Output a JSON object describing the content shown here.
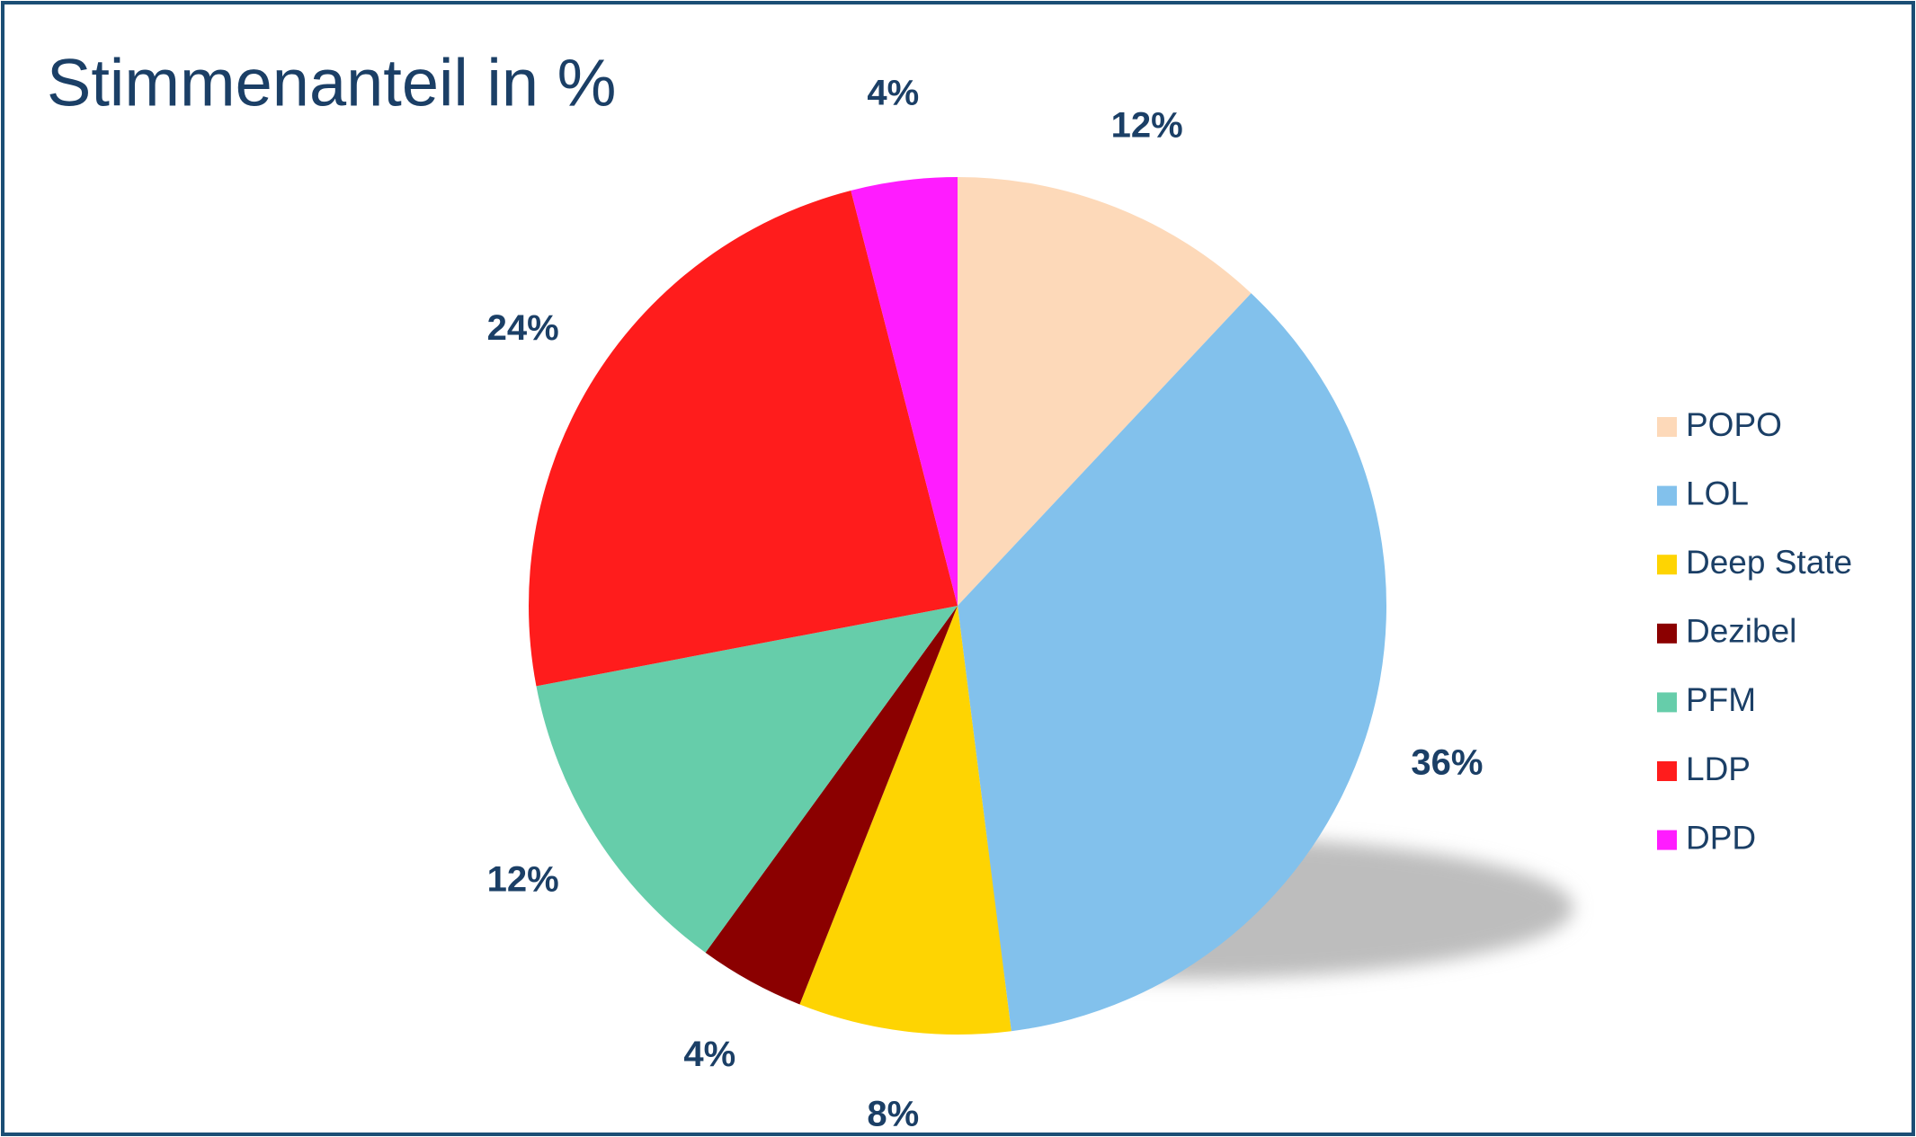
{
  "chart_data": {
    "type": "pie",
    "title": "Stimmenanteil in %",
    "categories": [
      "POPO",
      "LOL",
      "Deep State",
      "Dezibel",
      "PFM",
      "LDP",
      "DPD"
    ],
    "values": [
      12,
      36,
      8,
      4,
      12,
      24,
      4
    ],
    "value_labels": [
      "12%",
      "36%",
      "8%",
      "4%",
      "12%",
      "24%",
      "4%"
    ],
    "colors": [
      "#fdd9b9",
      "#82c1ec",
      "#fed402",
      "#8b0000",
      "#66cdaa",
      "#ff1c1c",
      "#ff1cff"
    ],
    "legend": "right"
  }
}
